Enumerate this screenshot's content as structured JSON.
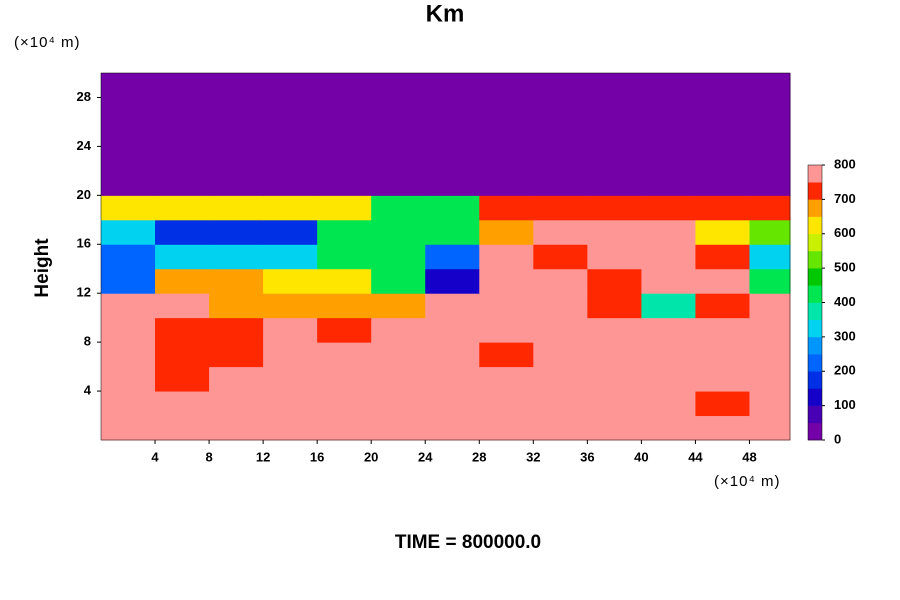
{
  "chart_data": {
    "type": "heatmap",
    "title": "Km",
    "y_label": "Height",
    "y_unit": "(×10⁴ m)",
    "x_unit": "(×10⁴ m)",
    "footer": "TIME = 800000.0",
    "xlim": [
      0,
      51
    ],
    "ylim": [
      0,
      30
    ],
    "xticks": [
      4,
      8,
      12,
      16,
      20,
      24,
      28,
      32,
      36,
      40,
      44,
      48
    ],
    "yticks": [
      4,
      8,
      12,
      16,
      20,
      24,
      28
    ],
    "x": [
      0,
      4,
      8,
      12,
      16,
      20,
      24,
      28,
      32,
      36,
      40,
      44,
      48,
      51
    ],
    "y": [
      0,
      2,
      4,
      6,
      8,
      10,
      12,
      14,
      16,
      18,
      20,
      22,
      24,
      26,
      28,
      30
    ],
    "z": [
      [
        800,
        800,
        800,
        800,
        800,
        800,
        800,
        800,
        800,
        800,
        800,
        800,
        800
      ],
      [
        800,
        800,
        800,
        800,
        800,
        800,
        800,
        800,
        800,
        800,
        800,
        700,
        800
      ],
      [
        800,
        700,
        800,
        800,
        800,
        800,
        800,
        800,
        800,
        800,
        800,
        800,
        800
      ],
      [
        800,
        700,
        700,
        800,
        800,
        800,
        800,
        700,
        800,
        800,
        800,
        800,
        800
      ],
      [
        800,
        700,
        700,
        800,
        700,
        750,
        800,
        800,
        800,
        800,
        800,
        800,
        800
      ],
      [
        800,
        800,
        650,
        650,
        650,
        650,
        750,
        800,
        800,
        700,
        350,
        700,
        750
      ],
      [
        200,
        650,
        650,
        600,
        600,
        400,
        100,
        750,
        750,
        700,
        750,
        750,
        400
      ],
      [
        200,
        300,
        300,
        300,
        400,
        400,
        200,
        750,
        700,
        750,
        750,
        700,
        300
      ],
      [
        300,
        150,
        150,
        150,
        400,
        400,
        400,
        650,
        750,
        750,
        750,
        600,
        500
      ],
      [
        600,
        600,
        600,
        600,
        600,
        400,
        400,
        700,
        700,
        700,
        700,
        700,
        700
      ],
      [
        0,
        0,
        0,
        0,
        0,
        0,
        0,
        0,
        0,
        0,
        0,
        0,
        0
      ],
      [
        0,
        0,
        0,
        0,
        0,
        0,
        0,
        0,
        0,
        0,
        0,
        0,
        0
      ],
      [
        0,
        0,
        0,
        0,
        0,
        0,
        0,
        0,
        0,
        0,
        0,
        0,
        0
      ],
      [
        0,
        0,
        0,
        0,
        0,
        0,
        0,
        0,
        0,
        0,
        0,
        0,
        0
      ],
      [
        0,
        0,
        0,
        0,
        0,
        0,
        0,
        0,
        0,
        0,
        0,
        0,
        0
      ]
    ],
    "clim": [
      0,
      800
    ],
    "colorbar_ticks": [
      0,
      100,
      200,
      300,
      400,
      500,
      600,
      700,
      800
    ],
    "colormap": [
      "#7400a8",
      "#4800b4",
      "#1400c8",
      "#0030e6",
      "#0064ff",
      "#0096ff",
      "#00d2f0",
      "#00e6aa",
      "#00e650",
      "#00c800",
      "#64e600",
      "#c8f000",
      "#ffe600",
      "#ffa000",
      "#ff2800",
      "#ff9696"
    ]
  }
}
